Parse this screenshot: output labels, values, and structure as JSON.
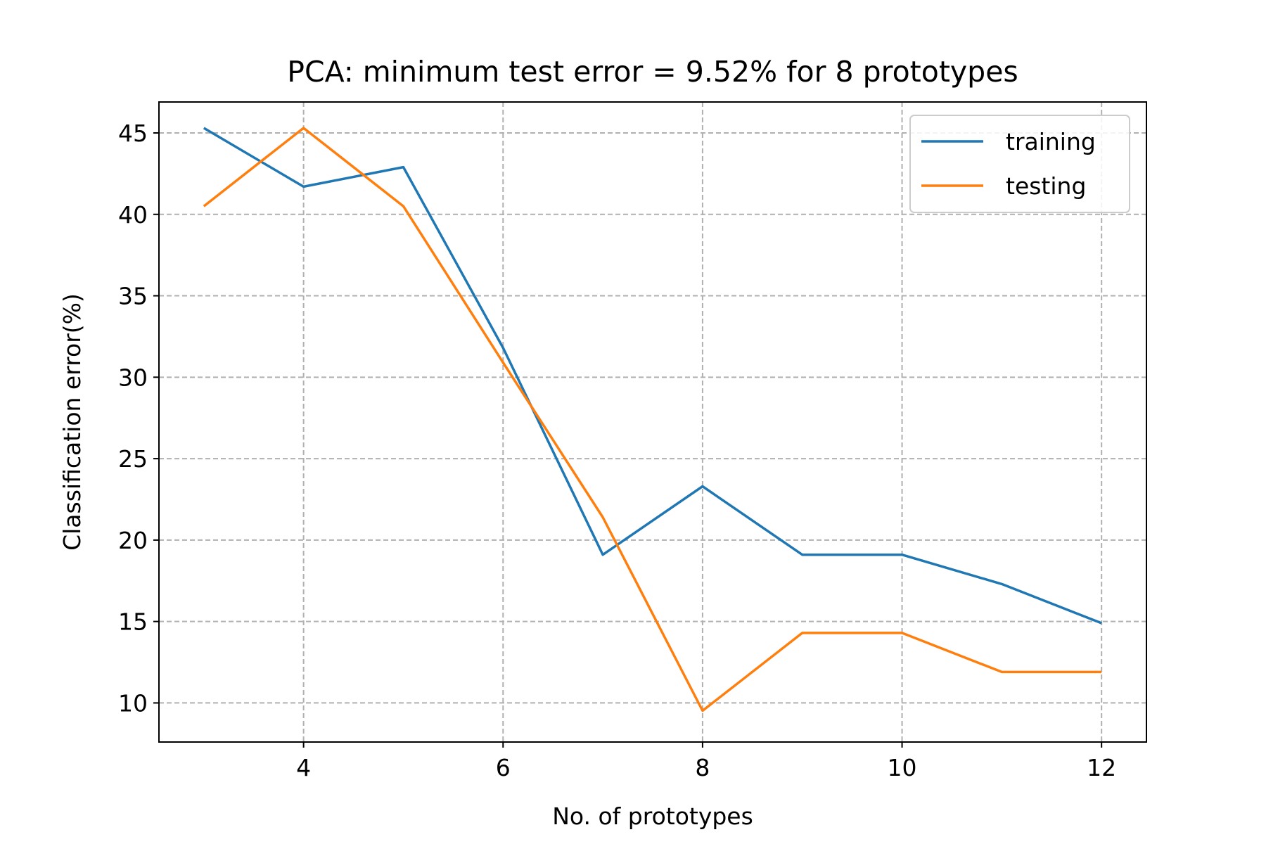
{
  "chart_data": {
    "type": "line",
    "title": "PCA: minimum test error = 9.52% for 8 prototypes",
    "xlabel": "No. of prototypes",
    "ylabel": "Classification error(%)",
    "x": [
      3,
      4,
      5,
      6,
      7,
      8,
      9,
      10,
      11,
      12
    ],
    "xlim": [
      2.55,
      12.45
    ],
    "ylim": [
      7.6,
      46.9
    ],
    "xticks": [
      4,
      6,
      8,
      10,
      12
    ],
    "xtick_labels": [
      "4",
      "6",
      "8",
      "10",
      "12"
    ],
    "yticks": [
      10,
      15,
      20,
      25,
      30,
      35,
      40,
      45
    ],
    "ytick_labels": [
      "10",
      "15",
      "20",
      "25",
      "30",
      "35",
      "40",
      "45"
    ],
    "grid": true,
    "legend_position": "top-right",
    "series": [
      {
        "name": "training",
        "color": "#1f77b4",
        "values": [
          45.3,
          41.7,
          42.9,
          31.8,
          19.1,
          23.3,
          19.1,
          19.1,
          17.3,
          14.9
        ]
      },
      {
        "name": "testing",
        "color": "#ff7f0e",
        "values": [
          40.5,
          45.3,
          40.5,
          30.9,
          21.4,
          9.52,
          14.3,
          14.3,
          11.9,
          11.9
        ]
      }
    ]
  }
}
